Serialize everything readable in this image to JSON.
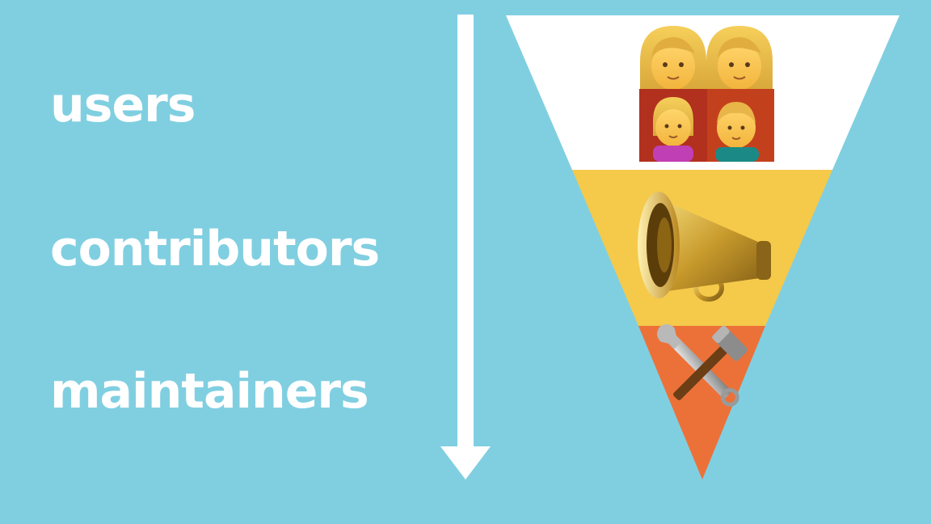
{
  "stages": [
    {
      "label": "users",
      "icon": "family-icon",
      "color": "#ffffff"
    },
    {
      "label": "contributors",
      "icon": "megaphone-icon",
      "color": "#f5c94a"
    },
    {
      "label": "maintainers",
      "icon": "hammer-and-wrench-icon",
      "color": "#ec7138"
    }
  ],
  "colors": {
    "background": "#80cfe1",
    "text": "#ffffff",
    "arrow": "#ffffff"
  }
}
